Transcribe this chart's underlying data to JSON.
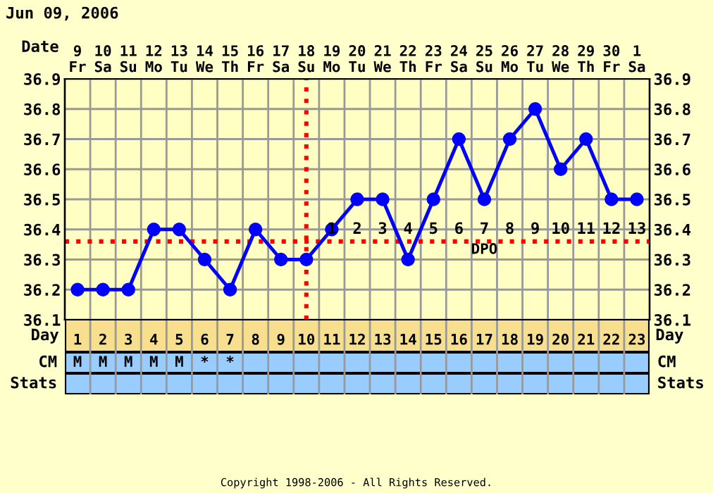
{
  "chart_data": {
    "type": "line",
    "title": "Jun 09, 2006",
    "x": [
      1,
      2,
      3,
      4,
      5,
      6,
      7,
      8,
      9,
      10,
      11,
      12,
      13,
      14,
      15,
      16,
      17,
      18,
      19,
      20,
      21,
      22,
      23
    ],
    "series": [
      {
        "color": "#0000ff",
        "values": [
          36.2,
          36.2,
          36.2,
          36.4,
          36.4,
          36.3,
          36.2,
          36.4,
          36.3,
          36.3,
          36.4,
          36.5,
          36.5,
          36.3,
          36.5,
          36.7,
          36.5,
          36.7,
          36.8,
          36.6,
          36.7,
          36.5,
          36.5
        ]
      }
    ],
    "xlabel": "Day",
    "x2label": "Date",
    "xlim": [
      0.5,
      23.5
    ],
    "xticks": [
      1,
      2,
      3,
      4,
      5,
      6,
      7,
      8,
      9,
      10,
      11,
      12,
      13,
      14,
      15,
      16,
      17,
      18,
      19,
      20,
      21,
      22,
      23
    ],
    "x2lim": [
      "2006-06-08T12:00",
      "2006-07-01T12:00"
    ],
    "x2ticks": [
      {
        "value": "2006-06-09",
        "label": "9\nFr"
      },
      {
        "value": "2006-06-10",
        "label": "10\nSa"
      },
      {
        "value": "2006-06-11",
        "label": "11\nSu"
      },
      {
        "value": "2006-06-12",
        "label": "12\nMo"
      },
      {
        "value": "2006-06-13",
        "label": "13\nTu"
      },
      {
        "value": "2006-06-14",
        "label": "14\nWe"
      },
      {
        "value": "2006-06-15",
        "label": "15\nTh"
      },
      {
        "value": "2006-06-16",
        "label": "16\nFr"
      },
      {
        "value": "2006-06-17",
        "label": "17\nSa"
      },
      {
        "value": "2006-06-18",
        "label": "18\nSu"
      },
      {
        "value": "2006-06-19",
        "label": "19\nMo"
      },
      {
        "value": "2006-06-20",
        "label": "20\nTu"
      },
      {
        "value": "2006-06-21",
        "label": "21\nWe"
      },
      {
        "value": "2006-06-22",
        "label": "22\nTh"
      },
      {
        "value": "2006-06-23",
        "label": "23\nFr"
      },
      {
        "value": "2006-06-24",
        "label": "24\nSa"
      },
      {
        "value": "2006-06-25",
        "label": "25\nSu"
      },
      {
        "value": "2006-06-26",
        "label": "26\nMo"
      },
      {
        "value": "2006-06-27",
        "label": "27\nTu"
      },
      {
        "value": "2006-06-28",
        "label": "28\nWe"
      },
      {
        "value": "2006-06-29",
        "label": "29\nTh"
      },
      {
        "value": "2006-06-30",
        "label": "30\nFr"
      },
      {
        "value": "2006-07-01",
        "label": "1\nSa"
      }
    ],
    "ylim": [
      36.1,
      36.9
    ],
    "yticks": [
      {
        "value": 36.1,
        "label": "36.1"
      },
      {
        "value": 36.2,
        "label": "36.2"
      },
      {
        "value": 36.3,
        "label": "36.3"
      },
      {
        "value": 36.4,
        "label": "36.4"
      },
      {
        "value": 36.5,
        "label": "36.5"
      },
      {
        "value": 36.6,
        "label": "36.6"
      },
      {
        "value": 36.7,
        "label": "36.7"
      },
      {
        "value": 36.8,
        "label": "36.8"
      },
      {
        "value": 36.9,
        "label": "36.9"
      }
    ],
    "y2lim": [
      36.1,
      36.9
    ],
    "y2ticks": [
      {
        "value": 36.1,
        "label": "36.1"
      },
      {
        "value": 36.2,
        "label": "36.2"
      },
      {
        "value": 36.3,
        "label": "36.3"
      },
      {
        "value": 36.4,
        "label": "36.4"
      },
      {
        "value": 36.5,
        "label": "36.5"
      },
      {
        "value": 36.6,
        "label": "36.6"
      },
      {
        "value": 36.7,
        "label": "36.7"
      },
      {
        "value": 36.8,
        "label": "36.8"
      },
      {
        "value": 36.9,
        "label": "36.9"
      }
    ],
    "grid": true,
    "marker": "circle",
    "line_style": "solid",
    "legend": false,
    "ref_lines": [
      {
        "axis": "x",
        "value": 10,
        "color": "#ff0000",
        "line_style": "dotted"
      },
      {
        "axis": "y",
        "value": 36.36,
        "color": "#ff0000",
        "line_style": "dotted"
      }
    ],
    "annotations": [
      "CM",
      "Stats",
      "M",
      "M",
      "M",
      "M",
      "M",
      "*",
      "*",
      "1",
      "2",
      "3",
      "4",
      "5",
      "6",
      "7",
      "8",
      "9",
      "10",
      "11",
      "12",
      "13",
      "DPO",
      "Copyright 1998-2006 - All Rights Reserved."
    ]
  }
}
